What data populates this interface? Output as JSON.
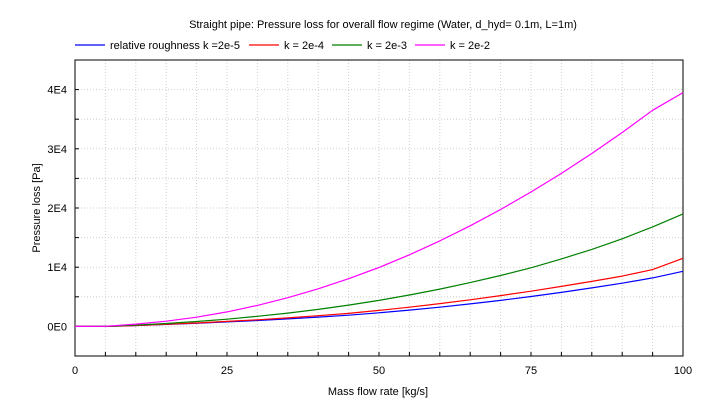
{
  "chart_data": {
    "type": "line",
    "title": "Straight pipe: Pressure loss for overall flow regime (Water, d_hyd= 0.1m, L=1m)",
    "xlabel": "Mass flow rate [kg/s]",
    "ylabel": "Pressure loss [Pa]",
    "xlim": [
      0,
      100
    ],
    "ylim": [
      -5000,
      45000
    ],
    "x_ticks": [
      0,
      25,
      50,
      75,
      100
    ],
    "x_tick_labels": [
      "0",
      "25",
      "50",
      "75",
      "100"
    ],
    "y_ticks": [
      0,
      10000,
      20000,
      30000,
      40000
    ],
    "y_tick_labels": [
      "0E0",
      "1E4",
      "2E4",
      "3E4",
      "4E4"
    ],
    "grid": true,
    "legend_position": "top",
    "x": [
      0,
      5,
      10,
      15,
      20,
      25,
      30,
      35,
      40,
      45,
      50,
      55,
      60,
      65,
      70,
      75,
      80,
      85,
      90,
      95,
      100
    ],
    "series": [
      {
        "name": "relative roughness k =2e-5",
        "color": "#0000ff",
        "values": [
          0,
          8,
          155,
          330,
          530,
          760,
          1000,
          1270,
          1570,
          1900,
          2300,
          2750,
          3250,
          3800,
          4400,
          5050,
          5750,
          6500,
          7300,
          8200,
          9300
        ]
      },
      {
        "name": "k = 2e-4",
        "color": "#ff0000",
        "values": [
          0,
          8,
          160,
          350,
          580,
          840,
          1120,
          1440,
          1800,
          2200,
          2700,
          3250,
          3850,
          4500,
          5200,
          5950,
          6750,
          7600,
          8500,
          9600,
          11500
        ]
      },
      {
        "name": "k = 2e-3",
        "color": "#008000",
        "values": [
          0,
          10,
          220,
          490,
          820,
          1220,
          1700,
          2250,
          2880,
          3600,
          4400,
          5300,
          6300,
          7400,
          8600,
          9900,
          11400,
          13000,
          14800,
          16800,
          19000
        ]
      },
      {
        "name": "k = 2e-2",
        "color": "#ff00ff",
        "values": [
          0,
          15,
          390,
          870,
          1550,
          2450,
          3550,
          4850,
          6350,
          8050,
          9950,
          12100,
          14450,
          17000,
          19750,
          22700,
          25850,
          29200,
          32750,
          36500,
          39500
        ]
      }
    ]
  }
}
